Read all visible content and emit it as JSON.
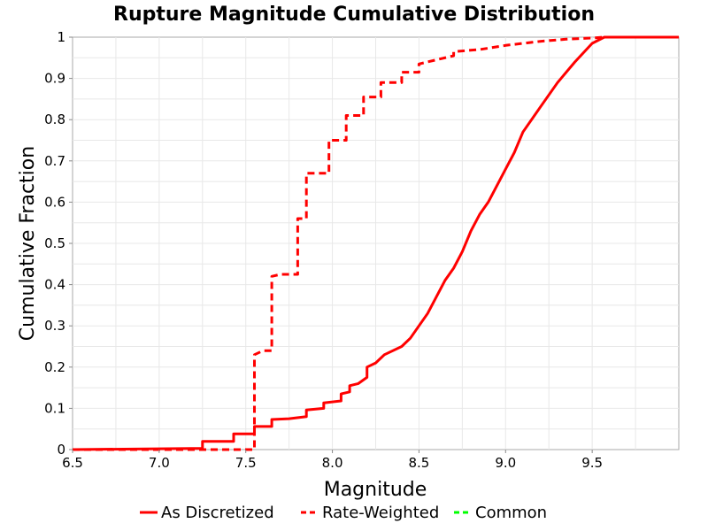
{
  "chart_data": {
    "type": "line",
    "title": "Rupture Magnitude Cumulative Distribution",
    "xlabel": "Magnitude",
    "ylabel": "Cumulative Fraction",
    "xlim": [
      6.5,
      10.0
    ],
    "ylim": [
      0,
      1
    ],
    "x_ticks": [
      "6.5",
      "7.0",
      "7.5",
      "8.0",
      "8.5",
      "9.0",
      "9.5"
    ],
    "y_ticks": [
      "0",
      "0.1",
      "0.2",
      "0.3",
      "0.4",
      "0.5",
      "0.6",
      "0.7",
      "0.8",
      "0.9",
      "1"
    ],
    "grid": true,
    "legend_position": "bottom",
    "series": [
      {
        "name": "As Discretized",
        "color": "#ff0000",
        "style": "solid",
        "points": [
          [
            6.5,
            0.0
          ],
          [
            7.25,
            0.003
          ],
          [
            7.25,
            0.02
          ],
          [
            7.43,
            0.02
          ],
          [
            7.43,
            0.038
          ],
          [
            7.55,
            0.038
          ],
          [
            7.55,
            0.056
          ],
          [
            7.65,
            0.056
          ],
          [
            7.65,
            0.073
          ],
          [
            7.75,
            0.075
          ],
          [
            7.85,
            0.08
          ],
          [
            7.85,
            0.096
          ],
          [
            7.95,
            0.1
          ],
          [
            7.95,
            0.113
          ],
          [
            8.05,
            0.118
          ],
          [
            8.05,
            0.135
          ],
          [
            8.1,
            0.14
          ],
          [
            8.1,
            0.155
          ],
          [
            8.15,
            0.16
          ],
          [
            8.2,
            0.175
          ],
          [
            8.2,
            0.2
          ],
          [
            8.25,
            0.21
          ],
          [
            8.3,
            0.23
          ],
          [
            8.4,
            0.25
          ],
          [
            8.45,
            0.27
          ],
          [
            8.5,
            0.3
          ],
          [
            8.55,
            0.33
          ],
          [
            8.6,
            0.37
          ],
          [
            8.65,
            0.41
          ],
          [
            8.7,
            0.44
          ],
          [
            8.75,
            0.48
          ],
          [
            8.8,
            0.53
          ],
          [
            8.85,
            0.57
          ],
          [
            8.9,
            0.6
          ],
          [
            9.0,
            0.68
          ],
          [
            9.05,
            0.72
          ],
          [
            9.1,
            0.77
          ],
          [
            9.2,
            0.83
          ],
          [
            9.3,
            0.89
          ],
          [
            9.4,
            0.94
          ],
          [
            9.5,
            0.985
          ],
          [
            9.57,
            1.0
          ],
          [
            10.0,
            1.0
          ]
        ]
      },
      {
        "name": "Rate-Weighted",
        "color": "#ff0000",
        "style": "dashed",
        "points": [
          [
            6.5,
            0.0
          ],
          [
            7.55,
            0.0
          ],
          [
            7.55,
            0.23
          ],
          [
            7.6,
            0.24
          ],
          [
            7.65,
            0.24
          ],
          [
            7.65,
            0.42
          ],
          [
            7.7,
            0.425
          ],
          [
            7.8,
            0.425
          ],
          [
            7.8,
            0.56
          ],
          [
            7.85,
            0.56
          ],
          [
            7.85,
            0.61
          ],
          [
            7.85,
            0.67
          ],
          [
            7.98,
            0.67
          ],
          [
            7.98,
            0.75
          ],
          [
            8.08,
            0.75
          ],
          [
            8.08,
            0.81
          ],
          [
            8.18,
            0.81
          ],
          [
            8.18,
            0.855
          ],
          [
            8.28,
            0.855
          ],
          [
            8.28,
            0.89
          ],
          [
            8.4,
            0.89
          ],
          [
            8.4,
            0.915
          ],
          [
            8.5,
            0.915
          ],
          [
            8.5,
            0.935
          ],
          [
            8.6,
            0.945
          ],
          [
            8.7,
            0.955
          ],
          [
            8.7,
            0.965
          ],
          [
            8.85,
            0.97
          ],
          [
            9.0,
            0.98
          ],
          [
            9.1,
            0.985
          ],
          [
            9.2,
            0.99
          ],
          [
            9.35,
            0.995
          ],
          [
            9.5,
            0.998
          ],
          [
            9.57,
            1.0
          ],
          [
            10.0,
            1.0
          ]
        ]
      },
      {
        "name": "Common",
        "color": "#00ff00",
        "style": "dashed",
        "points": []
      }
    ]
  }
}
